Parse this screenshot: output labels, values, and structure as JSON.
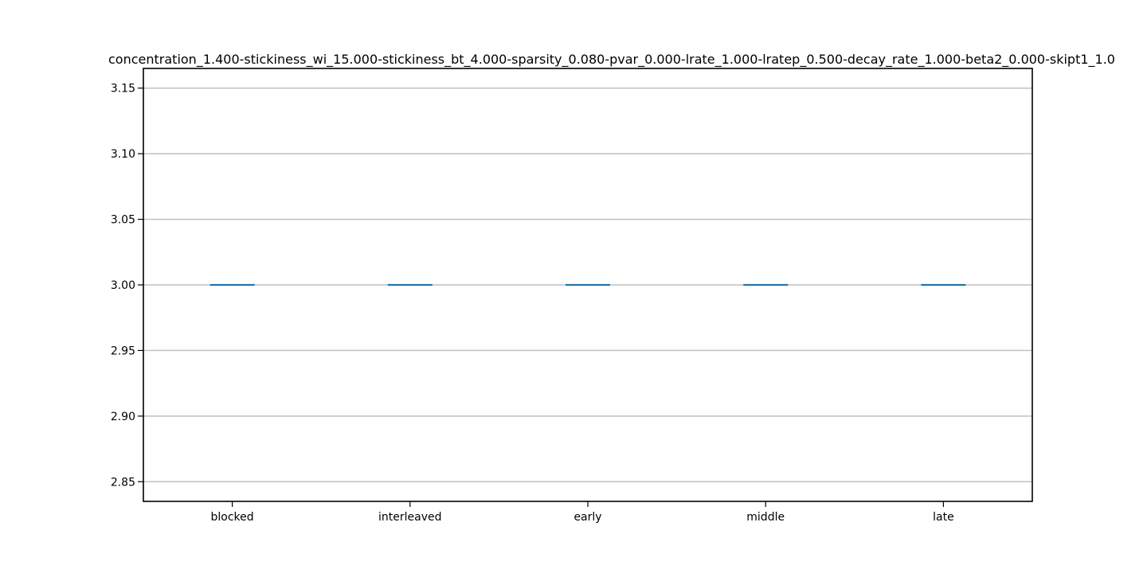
{
  "chart_data": {
    "type": "box",
    "title": "concentration_1.400-stickiness_wi_15.000-stickiness_bt_4.000-sparsity_0.080-pvar_0.000-lrate_1.000-lratep_0.500-decay_rate_1.000-beta2_0.000-skipt1_1.0",
    "xlabel": "",
    "ylabel": "",
    "categories": [
      "blocked",
      "interleaved",
      "early",
      "middle",
      "late"
    ],
    "values": [
      3.0,
      3.0,
      3.0,
      3.0,
      3.0
    ],
    "ylim": [
      2.835,
      3.165
    ],
    "yticks": [
      2.85,
      2.9,
      2.95,
      3.0,
      3.05,
      3.1,
      3.15
    ],
    "ytick_labels": [
      "2.85",
      "2.90",
      "2.95",
      "3.00",
      "3.05",
      "3.10",
      "3.15"
    ],
    "grid": "horizontal",
    "colors": {
      "median": "#1f77b4",
      "grid": "#c0c0c0",
      "axes": "#000000"
    }
  }
}
